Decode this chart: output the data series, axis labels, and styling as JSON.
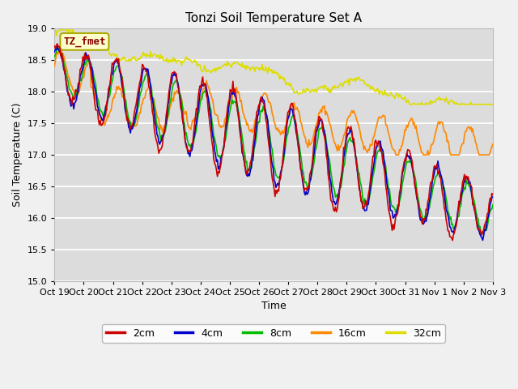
{
  "title": "Tonzi Soil Temperature Set A",
  "xlabel": "Time",
  "ylabel": "Soil Temperature (C)",
  "ylim": [
    15.0,
    19.0
  ],
  "yticks": [
    15.0,
    15.5,
    16.0,
    16.5,
    17.0,
    17.5,
    18.0,
    18.5,
    19.0
  ],
  "xtick_labels": [
    "Oct 19",
    "Oct 20",
    "Oct 21",
    "Oct 22",
    "Oct 23",
    "Oct 24",
    "Oct 25",
    "Oct 26",
    "Oct 27",
    "Oct 28",
    "Oct 29",
    "Oct 30",
    "Oct 31",
    "Nov 1",
    "Nov 2",
    "Nov 3"
  ],
  "series_colors": [
    "#cc0000",
    "#0000cc",
    "#00bb00",
    "#ff8800",
    "#dddd00"
  ],
  "series_labels": [
    "2cm",
    "4cm",
    "8cm",
    "16cm",
    "32cm"
  ],
  "legend_label": "TZ_fmet",
  "legend_bg": "#ffffcc",
  "legend_border": "#aaaa00",
  "legend_text_color": "#880000",
  "plot_bg": "#dcdcdc",
  "fig_bg": "#f0f0f0",
  "grid_color": "#ffffff",
  "n_points": 480
}
